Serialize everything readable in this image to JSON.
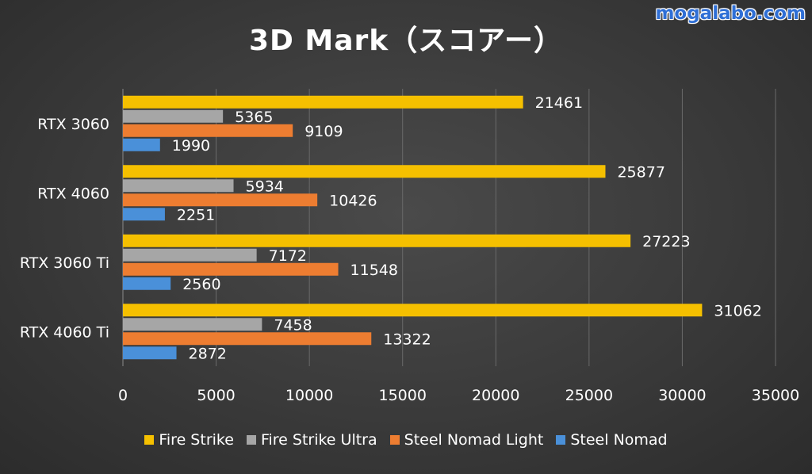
{
  "watermark": "mogalabo.com",
  "chart_data": {
    "type": "bar",
    "orientation": "horizontal",
    "title": "3D Mark（スコアー）",
    "categories": [
      "RTX 3060",
      "RTX 4060",
      "RTX 3060 Ti",
      "RTX 4060 Ti"
    ],
    "series": [
      {
        "name": "Fire Strike",
        "color": "#f5c000",
        "values": [
          21461,
          25877,
          27223,
          31062
        ]
      },
      {
        "name": "Fire Strike Ultra",
        "color": "#a6a6a6",
        "values": [
          5365,
          5934,
          7172,
          7458
        ]
      },
      {
        "name": "Steel Nomad Light",
        "color": "#ed7d31",
        "values": [
          9109,
          10426,
          11548,
          13322
        ]
      },
      {
        "name": "Steel Nomad",
        "color": "#4a90d9",
        "values": [
          1990,
          2251,
          2560,
          2872
        ]
      }
    ],
    "xlim": [
      0,
      35000
    ],
    "xticks": [
      "0",
      "5000",
      "10000",
      "15000",
      "20000",
      "25000",
      "30000",
      "35000"
    ],
    "grid": "vertical",
    "legend_position": "bottom"
  }
}
